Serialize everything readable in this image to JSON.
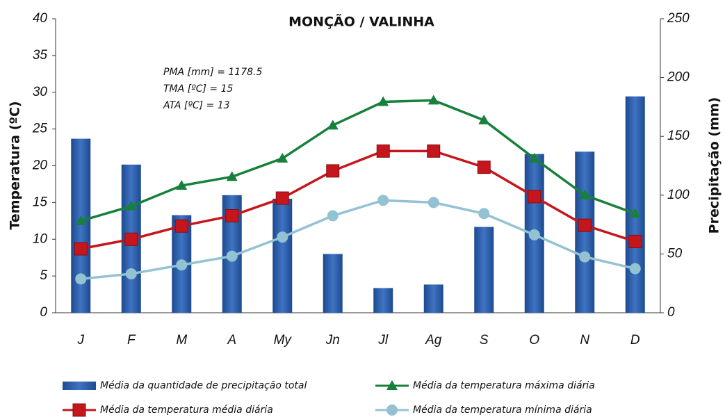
{
  "chart_data": {
    "type": "bar",
    "title": "MONÇÃO / VALINHA",
    "ylabel": "Temperatura (ºC)",
    "y2label": "Precipitação (mm)",
    "annotations": [
      "PMA [mm] = 1178.5",
      "TMA [ºC] = 15",
      "ATA [ºC] = 13"
    ],
    "categories": [
      "J",
      "F",
      "M",
      "A",
      "My",
      "Jn",
      "Jl",
      "Ag",
      "S",
      "O",
      "N",
      "D"
    ],
    "ylim": [
      0,
      40
    ],
    "yticks": [
      0,
      5,
      10,
      15,
      20,
      25,
      30,
      35,
      40
    ],
    "y2lim": [
      0,
      250
    ],
    "y2ticks": [
      0,
      50,
      100,
      150,
      200,
      250
    ],
    "series": [
      {
        "name": "Média da quantidade de precipitação total",
        "type": "bar",
        "axis": "y2",
        "color": "#2b5ca8",
        "values": [
          148,
          126,
          83,
          100,
          97,
          50,
          21,
          24,
          73,
          135,
          137,
          184
        ]
      },
      {
        "name": "Média da temperatura máxima diária",
        "type": "line",
        "marker": "triangle",
        "color": "#17803a",
        "values": [
          12.5,
          14.5,
          17.3,
          18.5,
          21,
          25.5,
          28.7,
          28.9,
          26.2,
          21,
          16,
          13.5
        ]
      },
      {
        "name": "Média da temperatura média diária",
        "type": "line",
        "marker": "square",
        "color": "#c4161c",
        "values": [
          8.7,
          10,
          11.8,
          13.2,
          15.6,
          19.3,
          22,
          22,
          19.8,
          15.8,
          11.9,
          9.7
        ]
      },
      {
        "name": "Média da temperatura mínima diária",
        "type": "line",
        "marker": "circle",
        "color": "#93c2d2",
        "values": [
          4.6,
          5.3,
          6.5,
          7.7,
          10.3,
          13.2,
          15.3,
          15,
          13.5,
          10.6,
          7.6,
          6
        ]
      }
    ]
  }
}
